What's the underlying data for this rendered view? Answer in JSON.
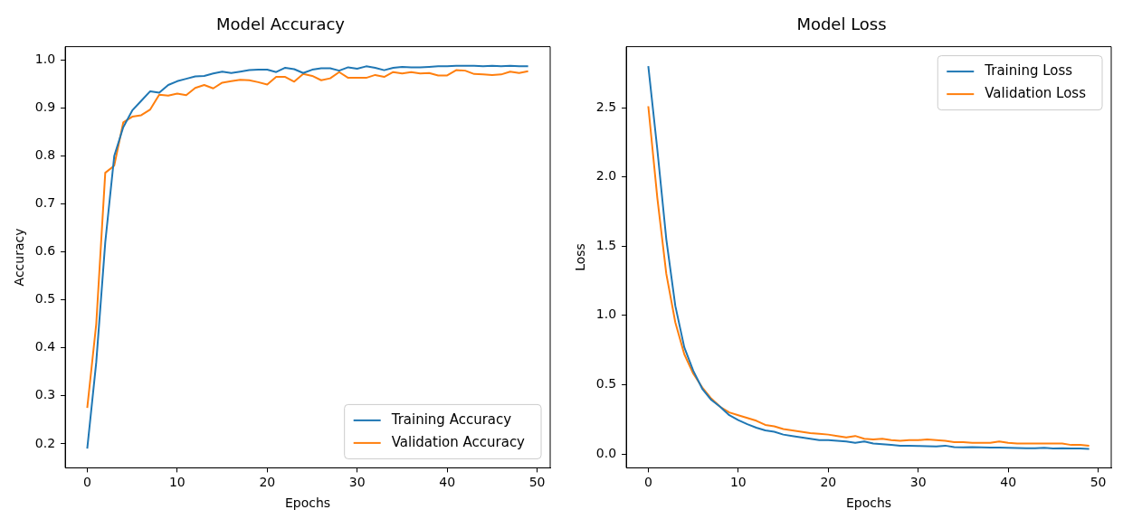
{
  "chart_data": [
    {
      "type": "line",
      "title": "Model Accuracy",
      "xlabel": "Epochs",
      "ylabel": "Accuracy",
      "x": [
        0,
        1,
        2,
        3,
        4,
        5,
        6,
        7,
        8,
        9,
        10,
        11,
        12,
        13,
        14,
        15,
        16,
        17,
        18,
        19,
        20,
        21,
        22,
        23,
        24,
        25,
        26,
        27,
        28,
        29,
        30,
        31,
        32,
        33,
        34,
        35,
        36,
        37,
        38,
        39,
        40,
        41,
        42,
        43,
        44,
        45,
        46,
        47,
        48,
        49
      ],
      "series": [
        {
          "name": "Training Accuracy",
          "color": "#1f77b4",
          "values": [
            0.19,
            0.37,
            0.62,
            0.8,
            0.86,
            0.895,
            0.915,
            0.935,
            0.932,
            0.948,
            0.956,
            0.961,
            0.966,
            0.967,
            0.972,
            0.976,
            0.973,
            0.976,
            0.979,
            0.98,
            0.98,
            0.975,
            0.984,
            0.981,
            0.973,
            0.98,
            0.983,
            0.983,
            0.978,
            0.985,
            0.982,
            0.987,
            0.984,
            0.979,
            0.984,
            0.986,
            0.985,
            0.985,
            0.986,
            0.987,
            0.987,
            0.988,
            0.988,
            0.988,
            0.987,
            0.988,
            0.987,
            0.988,
            0.987,
            0.987
          ]
        },
        {
          "name": "Validation Accuracy",
          "color": "#ff7f0e",
          "values": [
            0.275,
            0.45,
            0.765,
            0.78,
            0.87,
            0.882,
            0.885,
            0.897,
            0.928,
            0.926,
            0.93,
            0.927,
            0.942,
            0.948,
            0.941,
            0.953,
            0.956,
            0.959,
            0.958,
            0.954,
            0.949,
            0.965,
            0.965,
            0.955,
            0.971,
            0.967,
            0.958,
            0.962,
            0.975,
            0.963,
            0.963,
            0.963,
            0.969,
            0.965,
            0.975,
            0.972,
            0.975,
            0.972,
            0.973,
            0.968,
            0.968,
            0.979,
            0.978,
            0.971,
            0.97,
            0.969,
            0.97,
            0.976,
            0.973,
            0.977
          ]
        }
      ],
      "xlim": [
        -2.45,
        51.45
      ],
      "xticks": [
        0,
        10,
        20,
        30,
        40,
        50
      ],
      "ylim": [
        0.15,
        1.028
      ],
      "yticks": [
        {
          "value": 0.2,
          "label": "0.2"
        },
        {
          "value": 0.3,
          "label": "0.3"
        },
        {
          "value": 0.4,
          "label": "0.4"
        },
        {
          "value": 0.5,
          "label": "0.5"
        },
        {
          "value": 0.6,
          "label": "0.6"
        },
        {
          "value": 0.7,
          "label": "0.7"
        },
        {
          "value": 0.8,
          "label": "0.8"
        },
        {
          "value": 0.9,
          "label": "0.9"
        },
        {
          "value": 1.0,
          "label": "1.0"
        }
      ],
      "legend": "bottom right",
      "line_style": "solid"
    },
    {
      "type": "line",
      "title": "Model Loss",
      "xlabel": "Epochs",
      "ylabel": "Loss",
      "x": [
        0,
        1,
        2,
        3,
        4,
        5,
        6,
        7,
        8,
        9,
        10,
        11,
        12,
        13,
        14,
        15,
        16,
        17,
        18,
        19,
        20,
        21,
        22,
        23,
        24,
        25,
        26,
        27,
        28,
        29,
        30,
        31,
        32,
        33,
        34,
        35,
        36,
        37,
        38,
        39,
        40,
        41,
        42,
        43,
        44,
        45,
        46,
        47,
        48,
        49
      ],
      "series": [
        {
          "name": "Training Loss",
          "color": "#1f77b4",
          "values": [
            2.8,
            2.2,
            1.55,
            1.07,
            0.77,
            0.6,
            0.47,
            0.39,
            0.34,
            0.28,
            0.245,
            0.215,
            0.19,
            0.17,
            0.16,
            0.14,
            0.13,
            0.12,
            0.11,
            0.1,
            0.1,
            0.095,
            0.09,
            0.08,
            0.09,
            0.075,
            0.07,
            0.065,
            0.06,
            0.06,
            0.058,
            0.056,
            0.055,
            0.06,
            0.05,
            0.048,
            0.05,
            0.048,
            0.047,
            0.046,
            0.044,
            0.043,
            0.042,
            0.042,
            0.044,
            0.04,
            0.041,
            0.04,
            0.04,
            0.037
          ]
        },
        {
          "name": "Validation Loss",
          "color": "#ff7f0e",
          "values": [
            2.51,
            1.85,
            1.3,
            0.95,
            0.72,
            0.58,
            0.48,
            0.4,
            0.34,
            0.3,
            0.28,
            0.26,
            0.24,
            0.21,
            0.2,
            0.18,
            0.17,
            0.16,
            0.15,
            0.145,
            0.14,
            0.13,
            0.12,
            0.13,
            0.11,
            0.105,
            0.11,
            0.1,
            0.095,
            0.1,
            0.1,
            0.105,
            0.1,
            0.095,
            0.085,
            0.085,
            0.08,
            0.08,
            0.08,
            0.09,
            0.08,
            0.075,
            0.075,
            0.075,
            0.075,
            0.075,
            0.075,
            0.065,
            0.065,
            0.06
          ]
        }
      ],
      "xlim": [
        -2.45,
        51.45
      ],
      "xticks": [
        0,
        10,
        20,
        30,
        40,
        50
      ],
      "ylim": [
        -0.1,
        2.94
      ],
      "yticks": [
        {
          "value": 0,
          "label": "0.0"
        },
        {
          "value": 0.5,
          "label": "0.5"
        },
        {
          "value": 1,
          "label": "1.0"
        },
        {
          "value": 1.5,
          "label": "1.5"
        },
        {
          "value": 2,
          "label": "2.0"
        },
        {
          "value": 2.5,
          "label": "2.5"
        }
      ],
      "legend": "top right",
      "line_style": "solid"
    }
  ]
}
